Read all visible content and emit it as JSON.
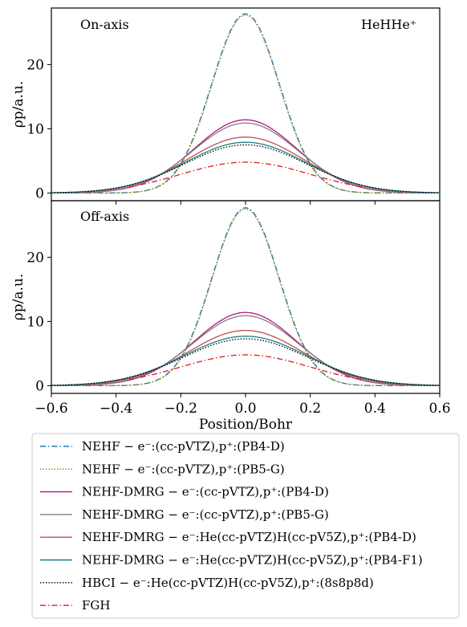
{
  "chart_data": [
    {
      "type": "line",
      "panel_label": "On-axis",
      "molecule_label": "HeHHe⁺",
      "xlim": [
        -0.6,
        0.6
      ],
      "ylim": [
        -1.2,
        28.8
      ],
      "ylabel": "ρp/a.u.",
      "y_ticks": [
        "0",
        "10",
        "20"
      ],
      "y_tick_values": [
        0,
        10,
        20
      ],
      "series": [
        {
          "name": "NEHF − e⁻:(cc-pVTZ),p⁺:(PB4-D)",
          "peak": 27.9,
          "sigma": 0.105,
          "style": "dashdot",
          "color": "#1f77b4"
        },
        {
          "name": "NEHF − e⁻:(cc-pVTZ),p⁺:(PB5-G)",
          "peak": 27.7,
          "sigma": 0.104,
          "style": "dotted",
          "color": "#8c8c00"
        },
        {
          "name": "NEHF-DMRG − e⁻:(cc-pVTZ),p⁺:(PB4-D)",
          "peak": 11.4,
          "sigma": 0.158,
          "style": "solid",
          "color": "#b0177a"
        },
        {
          "name": "NEHF-DMRG − e⁻:(cc-pVTZ),p⁺:(PB5-G)",
          "peak": 10.9,
          "sigma": 0.162,
          "style": "solid",
          "color": "#808080"
        },
        {
          "name": "NEHF-DMRG − e⁻:He(cc-pVTZ)H(cc-pV5Z),p⁺:(PB4-D)",
          "peak": 8.7,
          "sigma": 0.178,
          "style": "solid",
          "color": "#c0504d"
        },
        {
          "name": "NEHF-DMRG − e⁻:He(cc-pVTZ)H(cc-pV5Z),p⁺:(PB4-F1)",
          "peak": 7.9,
          "sigma": 0.185,
          "style": "solid",
          "color": "#1a7f8a"
        },
        {
          "name": "HBCI − e⁻:He(cc-pVTZ)H(cc-pV5Z),p⁺:(8s8p8d)",
          "peak": 7.5,
          "sigma": 0.188,
          "style": "dotted",
          "color": "#000000"
        },
        {
          "name": "FGH",
          "peak": 4.8,
          "sigma": 0.2,
          "style": "dashdot",
          "color": "#e41a1c",
          "range": [
            -0.36,
            0.36
          ]
        }
      ]
    },
    {
      "type": "line",
      "panel_label": "Off-axis",
      "xlim": [
        -0.6,
        0.6
      ],
      "ylim": [
        -1.2,
        28.8
      ],
      "xlabel": "Position/Bohr",
      "ylabel": "ρp/a.u.",
      "x_ticks": [
        "−0.6",
        "−0.4",
        "−0.2",
        "0.0",
        "0.2",
        "0.4",
        "0.6"
      ],
      "x_tick_values": [
        -0.6,
        -0.4,
        -0.2,
        0.0,
        0.2,
        0.4,
        0.6
      ],
      "y_ticks": [
        "0",
        "10",
        "20"
      ],
      "y_tick_values": [
        0,
        10,
        20
      ],
      "series": [
        {
          "name": "NEHF − e⁻:(cc-pVTZ),p⁺:(PB4-D)",
          "peak": 27.7,
          "sigma": 0.104,
          "style": "dashdot",
          "color": "#1f77b4"
        },
        {
          "name": "NEHF − e⁻:(cc-pVTZ),p⁺:(PB5-G)",
          "peak": 27.5,
          "sigma": 0.103,
          "style": "dotted",
          "color": "#8c8c00"
        },
        {
          "name": "NEHF-DMRG − e⁻:(cc-pVTZ),p⁺:(PB4-D)",
          "peak": 11.4,
          "sigma": 0.158,
          "style": "solid",
          "color": "#b0177a"
        },
        {
          "name": "NEHF-DMRG − e⁻:(cc-pVTZ),p⁺:(PB5-G)",
          "peak": 10.9,
          "sigma": 0.162,
          "style": "solid",
          "color": "#808080"
        },
        {
          "name": "NEHF-DMRG − e⁻:He(cc-pVTZ)H(cc-pV5Z),p⁺:(PB4-D)",
          "peak": 8.6,
          "sigma": 0.178,
          "style": "solid",
          "color": "#c0504d"
        },
        {
          "name": "NEHF-DMRG − e⁻:He(cc-pVTZ)H(cc-pV5Z),p⁺:(PB4-F1)",
          "peak": 7.7,
          "sigma": 0.19,
          "style": "solid",
          "color": "#1a7f8a"
        },
        {
          "name": "HBCI − e⁻:He(cc-pVTZ)H(cc-pV5Z),p⁺:(8s8p8d)",
          "peak": 7.3,
          "sigma": 0.192,
          "style": "dotted",
          "color": "#000000"
        },
        {
          "name": "FGH",
          "peak": 4.8,
          "sigma": 0.2,
          "style": "dashdot",
          "color": "#e41a1c",
          "range": [
            -0.36,
            0.36
          ]
        }
      ]
    }
  ],
  "legend": {
    "placement": "below",
    "entries": [
      {
        "label": "NEHF − e⁻:(cc-pVTZ),p⁺:(PB4-D)",
        "style": "dashdot",
        "color": "#1f77b4"
      },
      {
        "label": "NEHF − e⁻:(cc-pVTZ),p⁺:(PB5-G)",
        "style": "dotted",
        "color": "#8c8c00"
      },
      {
        "label": "NEHF-DMRG − e⁻:(cc-pVTZ),p⁺:(PB4-D)",
        "style": "solid",
        "color": "#b0177a"
      },
      {
        "label": "NEHF-DMRG − e⁻:(cc-pVTZ),p⁺:(PB5-G)",
        "style": "solid",
        "color": "#808080"
      },
      {
        "label": "NEHF-DMRG − e⁻:He(cc-pVTZ)H(cc-pV5Z),p⁺:(PB4-D)",
        "style": "solid",
        "color": "#c0504d"
      },
      {
        "label": "NEHF-DMRG − e⁻:He(cc-pVTZ)H(cc-pV5Z),p⁺:(PB4-F1)",
        "style": "solid",
        "color": "#1a7f8a"
      },
      {
        "label": "HBCI − e⁻:He(cc-pVTZ)H(cc-pV5Z),p⁺:(8s8p8d)",
        "style": "dotted",
        "color": "#000000"
      },
      {
        "label": "FGH",
        "style": "dashdot",
        "color": "#e41a1c"
      }
    ]
  }
}
